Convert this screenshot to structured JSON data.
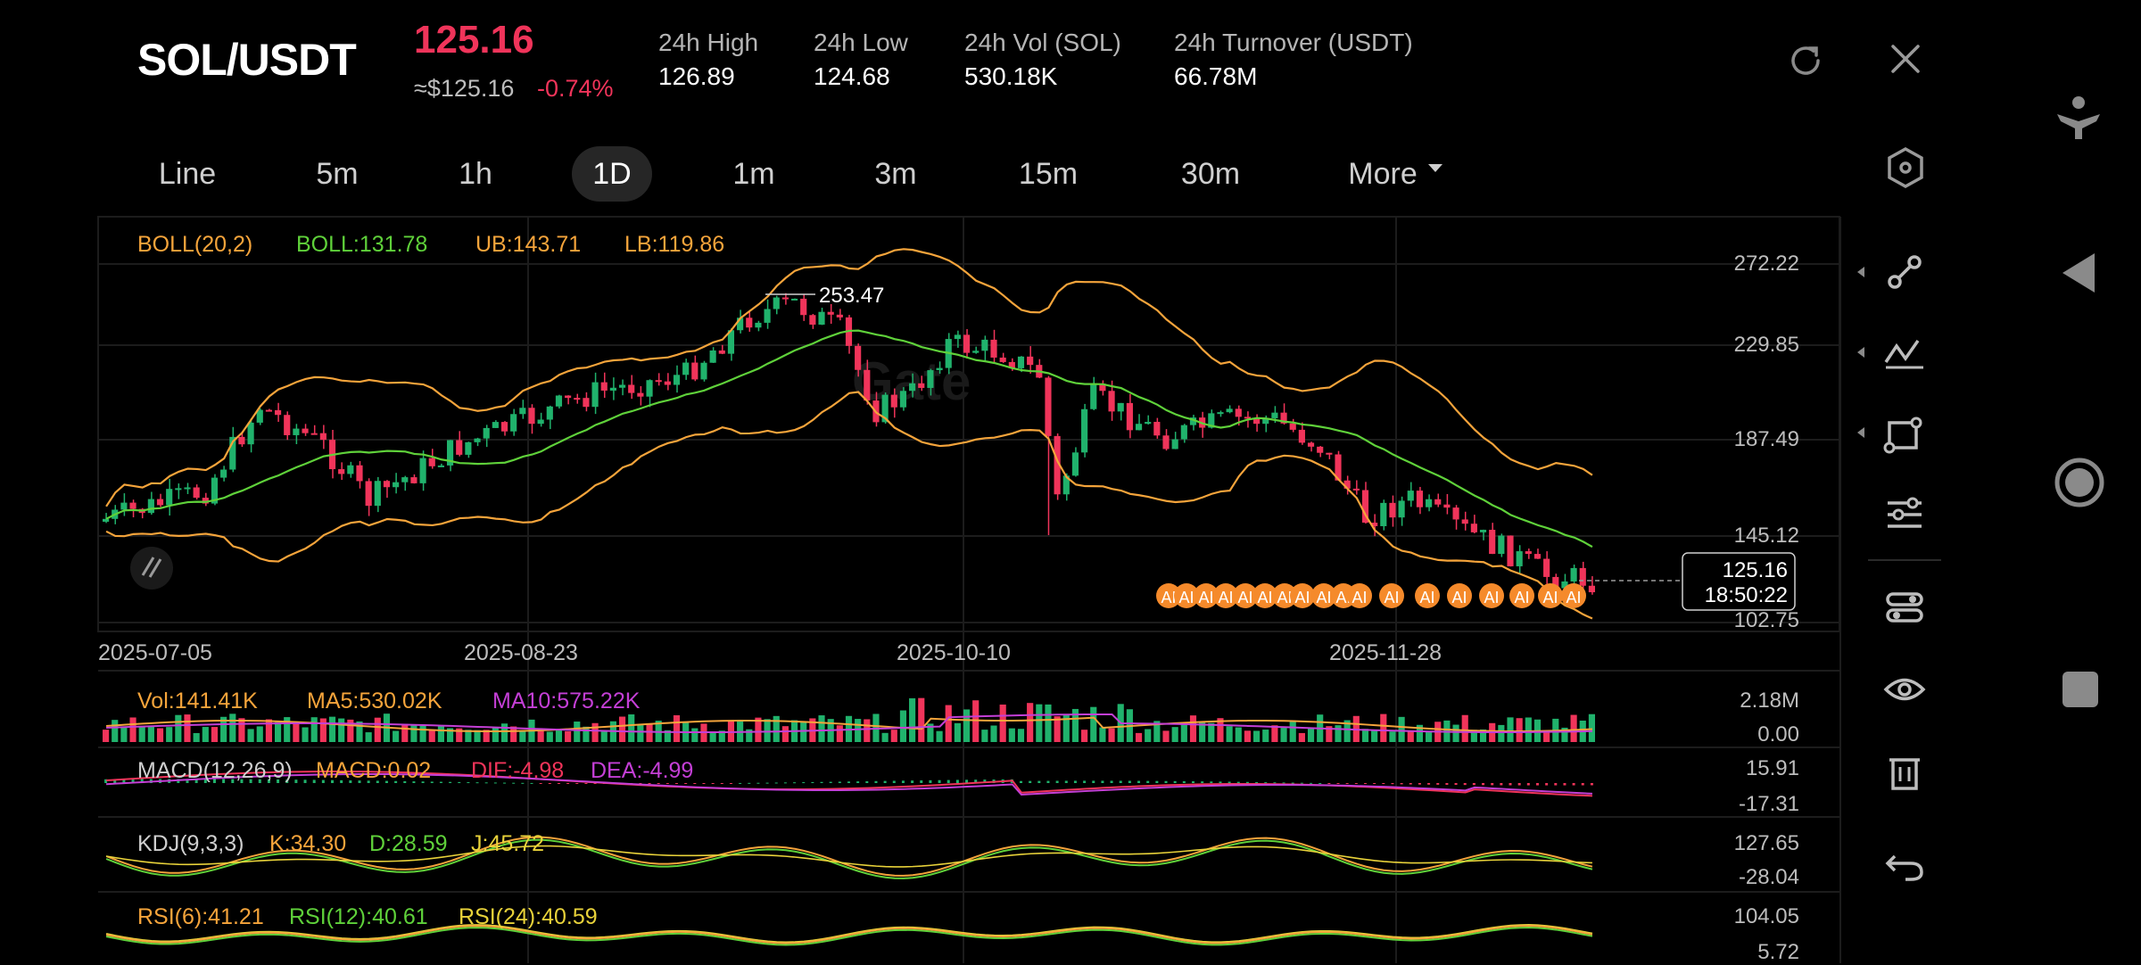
{
  "header": {
    "pair": "SOL/USDT",
    "price": "125.16",
    "approx": "≈$125.16",
    "change": "-0.74%",
    "stats": [
      {
        "label": "24h  High",
        "value": "126.89"
      },
      {
        "label": "24h  Low",
        "value": "124.68"
      },
      {
        "label": "24h  Vol (SOL)",
        "value": "530.18K"
      },
      {
        "label": "24h  Turnover (USDT)",
        "value": "66.78M"
      }
    ]
  },
  "tabs": [
    "Line",
    "5m",
    "1h",
    "1D",
    "1m",
    "3m",
    "15m",
    "30m",
    "More"
  ],
  "active_tab": "1D",
  "main": {
    "boll_name": "BOLL(20,2)",
    "boll": "BOLL:131.78",
    "ub": "UB:143.71",
    "lb": "LB:119.86",
    "y_ticks": [
      "272.22",
      "229.85",
      "187.49",
      "145.12",
      "102.75"
    ],
    "dates": [
      "2025-07-05",
      "2025-08-23",
      "2025-10-10",
      "2025-11-28"
    ],
    "peak_label": "253.47",
    "last_price": "125.16",
    "countdown": "18:50:22",
    "watermark": "Gate",
    "ai_badge": "AI"
  },
  "volume": {
    "vol": "Vol:141.41K",
    "ma5": "MA5:530.02K",
    "ma10": "MA10:575.22K",
    "ticks": [
      "2.18M",
      "0.00"
    ]
  },
  "macd": {
    "name": "MACD(12,26,9)",
    "macd": "MACD:0.02",
    "dif": "DIF:-4.98",
    "dea": "DEA:-4.99",
    "ticks": [
      "15.91",
      "-17.31"
    ]
  },
  "kdj": {
    "name": "KDJ(9,3,3)",
    "k": "K:34.30",
    "d": "D:28.59",
    "j": "J:45.72",
    "ticks": [
      "127.65",
      "-28.04"
    ]
  },
  "rsi": {
    "r6": "RSI(6):41.21",
    "r12": "RSI(12):40.61",
    "r24": "RSI(24):40.59",
    "ticks": [
      "104.05",
      "5.72"
    ]
  },
  "colors": {
    "up": "#20b26c",
    "down": "#f0345a",
    "boll_band": "#f5a43b",
    "boll_mid": "#5fd13a",
    "ma10": "#c43fd6",
    "bg": "#000000"
  },
  "icons": [
    "refresh-icon",
    "close-icon",
    "settings-hexagon-icon",
    "line-tool-icon",
    "trend-tool-icon",
    "shape-tool-icon",
    "indicators-icon",
    "sliders-icon",
    "eye-icon",
    "trash-icon",
    "undo-icon"
  ]
}
